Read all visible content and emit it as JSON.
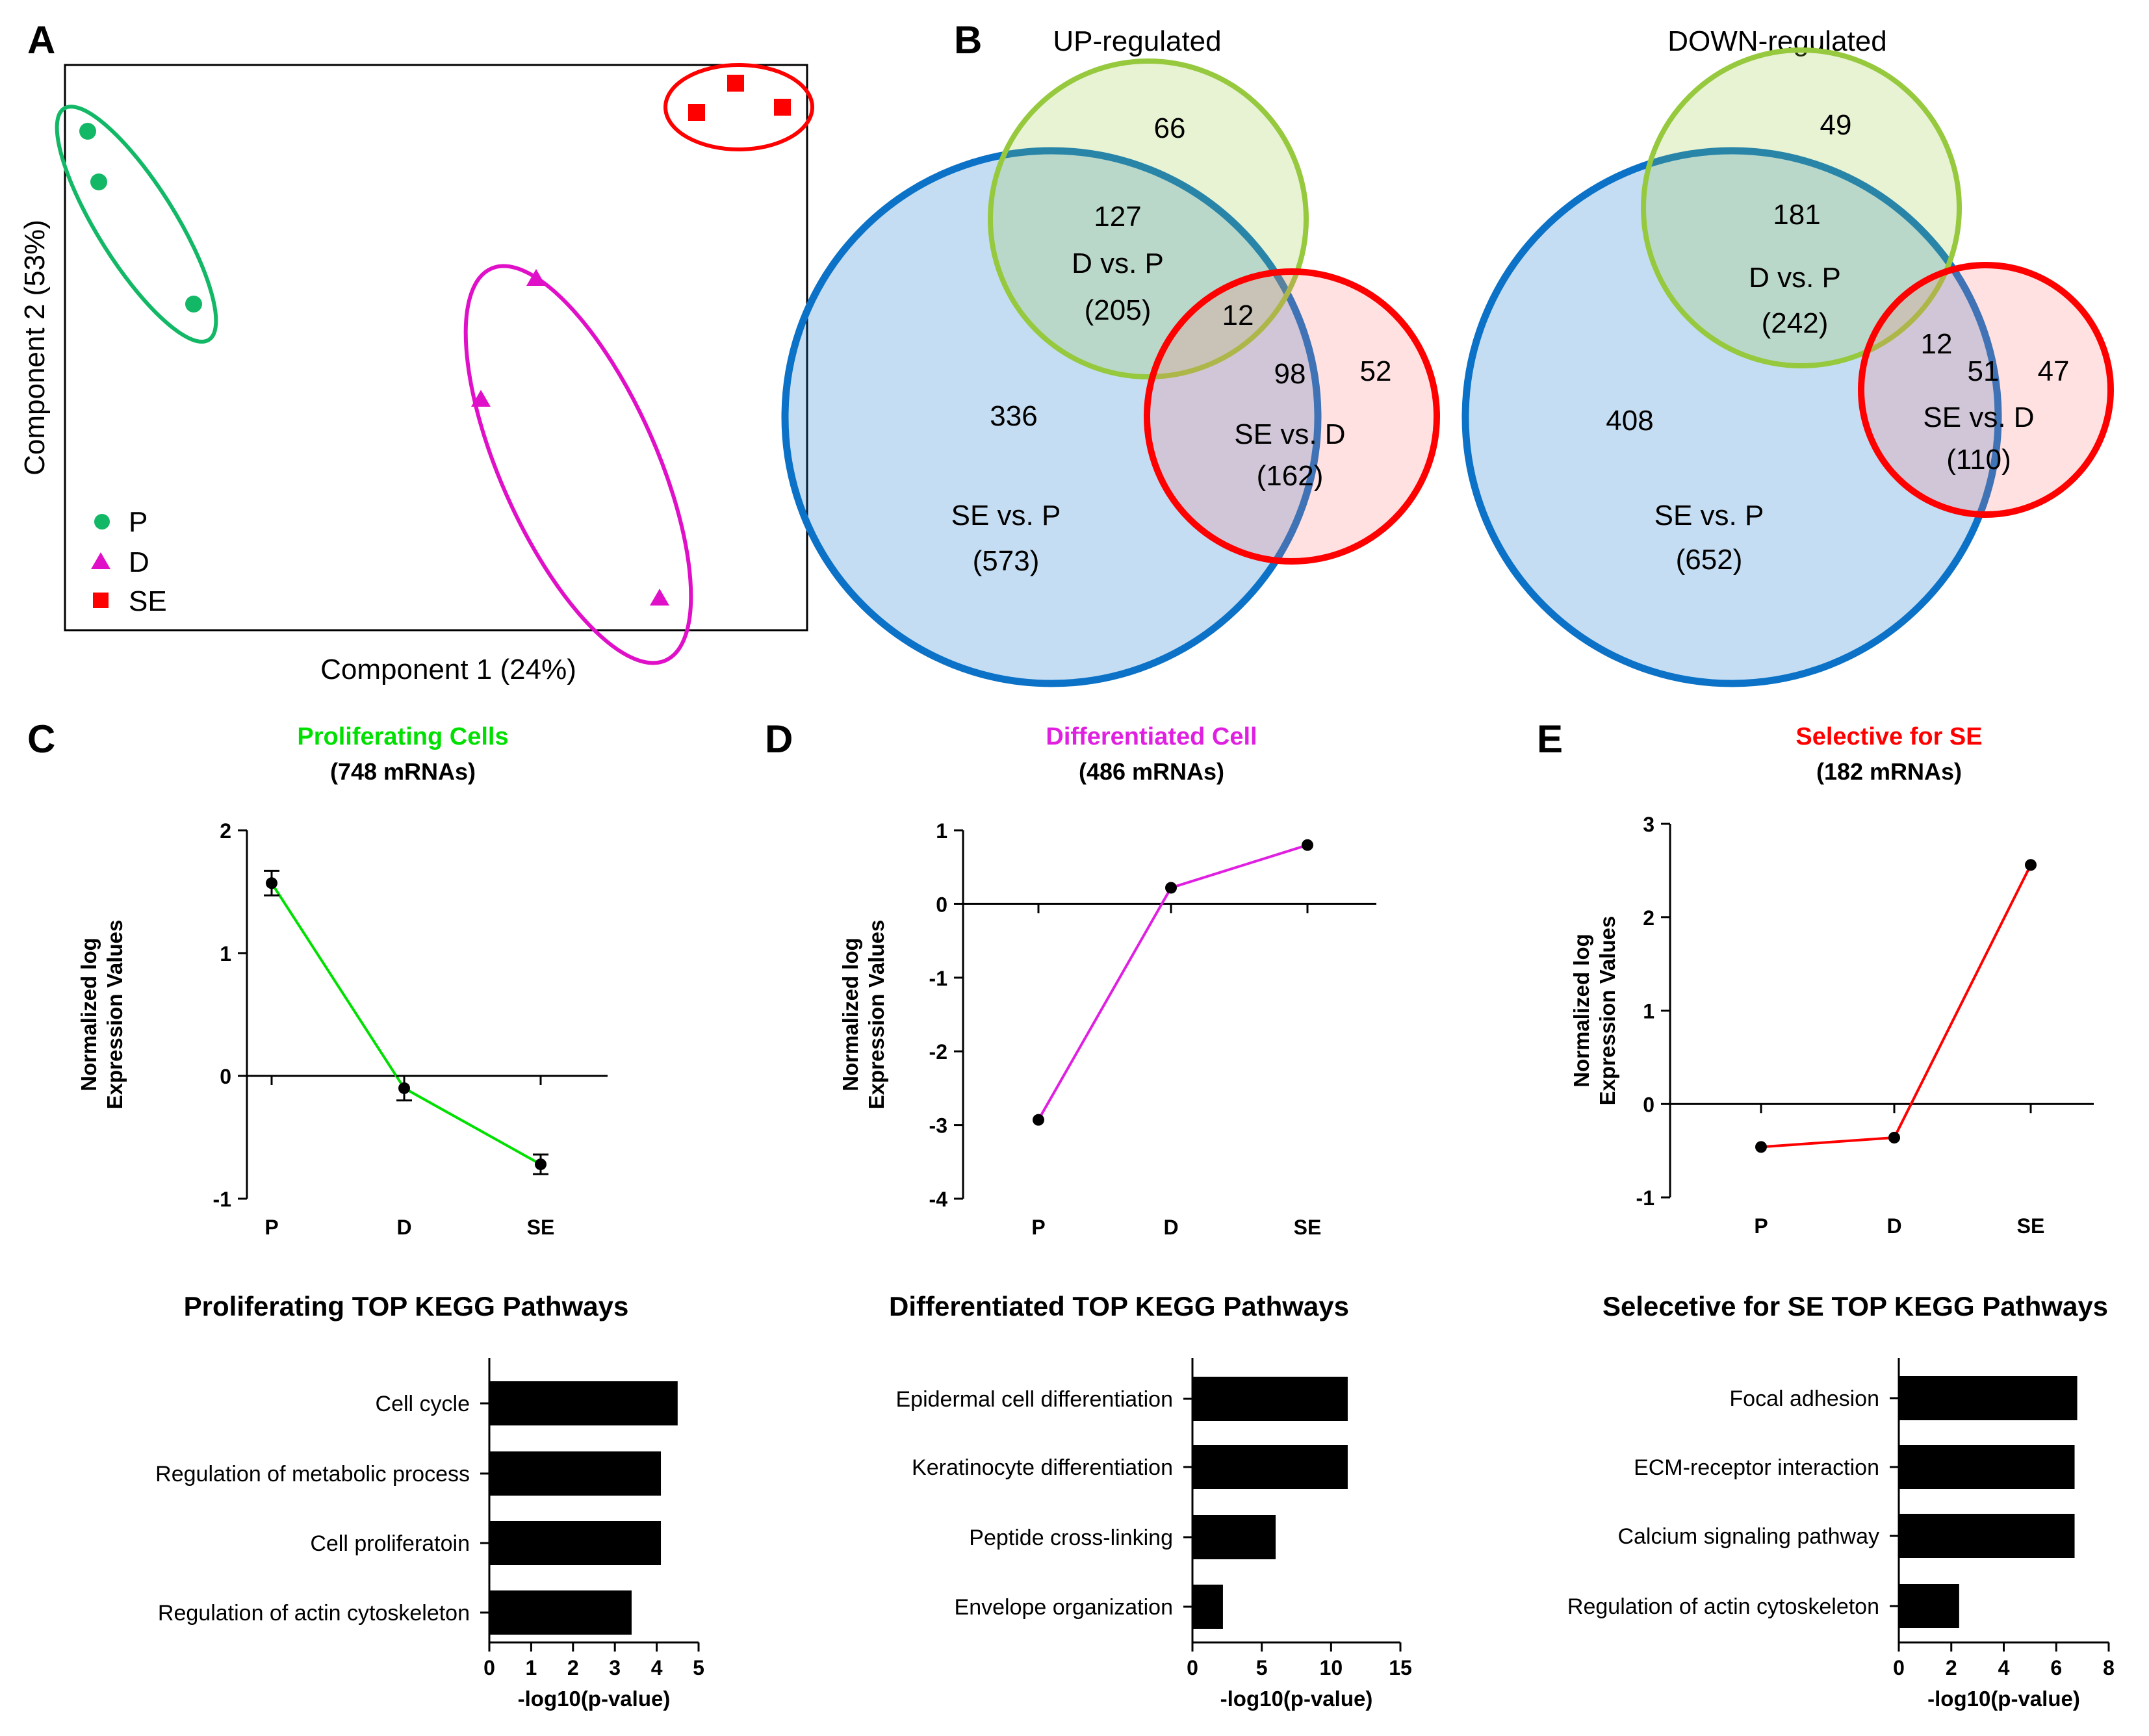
{
  "colors": {
    "prolif": "#00e000",
    "diff": "#e020e0",
    "se": "#ff0000",
    "pca_p": "#12b866",
    "pca_d": "#e010c8",
    "pca_se": "#ff0000",
    "venn_green": "#96c93d",
    "venn_blue": "#0b72c7",
    "venn_red": "#ff0000"
  },
  "panel_labels": {
    "a": "A",
    "b": "B",
    "c": "C",
    "d": "D",
    "e": "E"
  },
  "pca": {
    "xlabel": "Component 1 (24%)",
    "ylabel": "Component 2 (53%)",
    "legend": [
      {
        "label": "P",
        "marker": "circle"
      },
      {
        "label": "D",
        "marker": "triangle"
      },
      {
        "label": "SE",
        "marker": "square"
      }
    ]
  },
  "venn_up": {
    "title": "UP-regulated",
    "only_d_vs_p": "66",
    "d_and_se_p": "127",
    "d_vs_p_label": "D vs. P",
    "d_vs_p_total": "(205)",
    "triple": "12",
    "se_d_and_se_p": "98",
    "only_se_vs_d": "52",
    "se_vs_d_label": "SE vs. D",
    "se_vs_d_total": "(162)",
    "only_se_vs_p": "336",
    "se_vs_p_label": "SE vs. P",
    "se_vs_p_total": "(573)"
  },
  "venn_down": {
    "title": "DOWN-regulated",
    "only_d_vs_p": "49",
    "d_and_se_p": "181",
    "d_vs_p_label": "D vs. P",
    "d_vs_p_total": "(242)",
    "triple": "12",
    "se_d_and_se_p": "51",
    "only_se_vs_d": "47",
    "se_vs_d_label": "SE vs. D",
    "se_vs_d_total": "(110)",
    "only_se_vs_p": "408",
    "se_vs_p_label": "SE vs. P",
    "se_vs_p_total": "(652)"
  },
  "chart_data": [
    {
      "type": "line",
      "title": "Proliferating Cells",
      "subtitle": "(748 mRNAs)",
      "ylabel": "Normalized log Expression Values",
      "categories": [
        "P",
        "D",
        "SE"
      ],
      "values": [
        1.57,
        -0.1,
        -0.72
      ],
      "errors": [
        0.1,
        0.1,
        0.08
      ],
      "ylim": [
        -1,
        2
      ],
      "yticks": [
        -1,
        0,
        1,
        2
      ]
    },
    {
      "type": "line",
      "title": "Differentiated Cell",
      "subtitle": "(486 mRNAs)",
      "ylabel": "Normalized log Expression Values",
      "categories": [
        "P",
        "D",
        "SE"
      ],
      "values": [
        -2.93,
        0.22,
        0.8
      ],
      "errors": [
        0,
        0,
        0
      ],
      "ylim": [
        -4,
        1
      ],
      "yticks": [
        -4,
        -3,
        -2,
        -1,
        0,
        1
      ]
    },
    {
      "type": "line",
      "title": "Selective for SE",
      "subtitle": "(182 mRNAs)",
      "ylabel": "Normalized log Expression Values",
      "categories": [
        "P",
        "D",
        "SE"
      ],
      "values": [
        -0.46,
        -0.36,
        2.56
      ],
      "errors": [
        0,
        0,
        0
      ],
      "ylim": [
        -1,
        3
      ],
      "yticks": [
        -1,
        0,
        1,
        2,
        3
      ]
    },
    {
      "type": "bar",
      "title": "Proliferating TOP KEGG Pathways",
      "xlabel": "-log10(p-value)",
      "categories": [
        "Cell cycle",
        "Regulation of metabolic process",
        "Cell proliferatoin",
        "Regulation of actin cytoskeleton"
      ],
      "values": [
        4.5,
        4.1,
        4.1,
        3.4
      ],
      "xlim": [
        0,
        5
      ],
      "xticks": [
        0,
        1,
        2,
        3,
        4,
        5
      ]
    },
    {
      "type": "bar",
      "title": "Differentiated TOP KEGG Pathways",
      "xlabel": "-log10(p-value)",
      "categories": [
        "Epidermal cell differentiation",
        "Keratinocyte differentiation",
        "Peptide cross-linking",
        "Envelope organization"
      ],
      "values": [
        11.2,
        11.2,
        6.0,
        2.2
      ],
      "xlim": [
        0,
        15
      ],
      "xticks": [
        0,
        5,
        10,
        15
      ]
    },
    {
      "type": "bar",
      "title": "Selecetive for  SE TOP KEGG Pathways",
      "xlabel": "-log10(p-value)",
      "categories": [
        "Focal adhesion",
        "ECM-receptor interaction",
        "Calcium signaling pathway",
        "Regulation of actin cytoskeleton"
      ],
      "values": [
        6.8,
        6.7,
        6.7,
        2.3
      ],
      "xlim": [
        0,
        8
      ],
      "xticks": [
        0,
        2,
        4,
        6,
        8
      ]
    }
  ]
}
